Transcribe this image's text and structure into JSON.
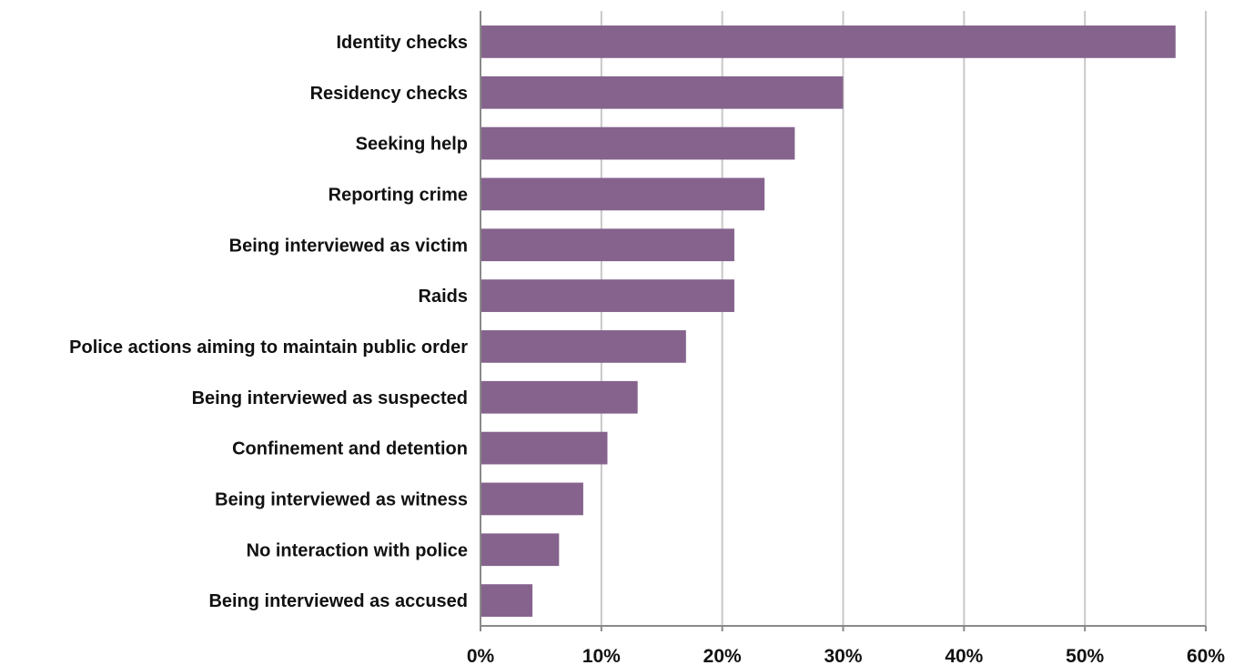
{
  "chart_data": {
    "type": "bar",
    "orientation": "horizontal",
    "categories": [
      "Identity checks",
      "Residency checks",
      "Seeking help",
      "Reporting crime",
      "Being interviewed as victim",
      "Raids",
      "Police actions aiming to maintain public order",
      "Being interviewed as suspected",
      "Confinement and detention",
      "Being interviewed as witness",
      "No interaction with police",
      "Being interviewed as accused"
    ],
    "values": [
      57.5,
      30,
      26,
      23.5,
      21,
      21,
      17,
      13,
      10.5,
      8.5,
      6.5,
      4.3
    ],
    "xlim": [
      0,
      60
    ],
    "x_ticks": [
      0,
      10,
      20,
      30,
      40,
      50,
      60
    ],
    "x_tick_labels": [
      "0%",
      "10%",
      "20%",
      "30%",
      "40%",
      "50%",
      "60%"
    ],
    "grid": "vertical",
    "bar_color": "#85638d"
  }
}
